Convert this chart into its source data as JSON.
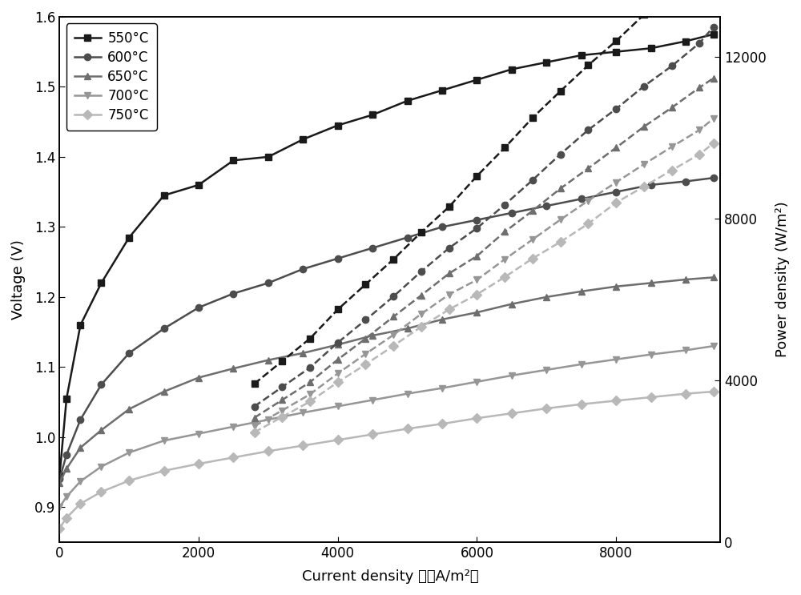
{
  "temperatures": [
    "550°C",
    "600°C",
    "650°C",
    "700°C",
    "750°C"
  ],
  "colors": [
    "#1a1a1a",
    "#4d4d4d",
    "#6e6e6e",
    "#969696",
    "#b8b8b8"
  ],
  "voltage_data": {
    "550": {
      "x": [
        0,
        100,
        300,
        600,
        1000,
        1500,
        2000,
        2500,
        3000,
        3500,
        4000,
        4500,
        5000,
        5500,
        6000,
        6500,
        7000,
        7500,
        8000,
        8500,
        9000,
        9400
      ],
      "y": [
        0.945,
        1.055,
        1.16,
        1.22,
        1.285,
        1.345,
        1.36,
        1.395,
        1.4,
        1.425,
        1.445,
        1.46,
        1.48,
        1.495,
        1.51,
        1.525,
        1.535,
        1.545,
        1.55,
        1.555,
        1.565,
        1.575
      ]
    },
    "600": {
      "x": [
        0,
        100,
        300,
        600,
        1000,
        1500,
        2000,
        2500,
        3000,
        3500,
        4000,
        4500,
        5000,
        5500,
        6000,
        6500,
        7000,
        7500,
        8000,
        8500,
        9000,
        9400
      ],
      "y": [
        0.94,
        0.975,
        1.025,
        1.075,
        1.12,
        1.155,
        1.185,
        1.205,
        1.22,
        1.24,
        1.255,
        1.27,
        1.285,
        1.3,
        1.31,
        1.32,
        1.33,
        1.34,
        1.35,
        1.36,
        1.365,
        1.37
      ]
    },
    "650": {
      "x": [
        0,
        100,
        300,
        600,
        1000,
        1500,
        2000,
        2500,
        3000,
        3500,
        4000,
        4500,
        5000,
        5500,
        6000,
        6500,
        7000,
        7500,
        8000,
        8500,
        9000,
        9400
      ],
      "y": [
        0.935,
        0.955,
        0.985,
        1.01,
        1.04,
        1.065,
        1.085,
        1.098,
        1.11,
        1.12,
        1.132,
        1.145,
        1.155,
        1.168,
        1.178,
        1.19,
        1.2,
        1.208,
        1.215,
        1.22,
        1.225,
        1.228
      ]
    },
    "700": {
      "x": [
        0,
        100,
        300,
        600,
        1000,
        1500,
        2000,
        2500,
        3000,
        3500,
        4000,
        4500,
        5000,
        5500,
        6000,
        6500,
        7000,
        7500,
        8000,
        8500,
        9000,
        9400
      ],
      "y": [
        0.9,
        0.915,
        0.937,
        0.958,
        0.978,
        0.995,
        1.005,
        1.015,
        1.025,
        1.035,
        1.044,
        1.053,
        1.062,
        1.07,
        1.079,
        1.088,
        1.096,
        1.104,
        1.111,
        1.118,
        1.124,
        1.13
      ]
    },
    "750": {
      "x": [
        0,
        100,
        300,
        600,
        1000,
        1500,
        2000,
        2500,
        3000,
        3500,
        4000,
        4500,
        5000,
        5500,
        6000,
        6500,
        7000,
        7500,
        8000,
        8500,
        9000,
        9400
      ],
      "y": [
        0.87,
        0.885,
        0.905,
        0.922,
        0.938,
        0.952,
        0.962,
        0.971,
        0.98,
        0.988,
        0.996,
        1.004,
        1.012,
        1.019,
        1.027,
        1.034,
        1.041,
        1.047,
        1.052,
        1.057,
        1.062,
        1.065
      ]
    }
  },
  "power_data": {
    "550": {
      "x": [
        2800,
        3200,
        3600,
        4000,
        4400,
        4800,
        5200,
        5600,
        6000,
        6400,
        6800,
        7200,
        7600,
        8000,
        8400,
        8800,
        9200,
        9400
      ],
      "y": [
        3920,
        4480,
        5040,
        5760,
        6380,
        7000,
        7670,
        8300,
        9060,
        9760,
        10500,
        11160,
        11800,
        12400,
        13050,
        13640,
        14350,
        14750
      ]
    },
    "600": {
      "x": [
        2800,
        3200,
        3600,
        4000,
        4400,
        4800,
        5200,
        5600,
        6000,
        6400,
        6800,
        7200,
        7600,
        8000,
        8400,
        8800,
        9200,
        9400
      ],
      "y": [
        3360,
        3840,
        4320,
        4940,
        5500,
        6080,
        6700,
        7280,
        7770,
        8350,
        8960,
        9600,
        10200,
        10720,
        11280,
        11780,
        12350,
        12750
      ]
    },
    "650": {
      "x": [
        2800,
        3200,
        3600,
        4000,
        4400,
        4800,
        5200,
        5600,
        6000,
        6400,
        6800,
        7200,
        7600,
        8000,
        8400,
        8800,
        9200,
        9400
      ],
      "y": [
        3080,
        3520,
        3960,
        4520,
        5040,
        5580,
        6110,
        6650,
        7080,
        7680,
        8200,
        8750,
        9250,
        9760,
        10280,
        10750,
        11250,
        11480
      ]
    },
    "700": {
      "x": [
        2800,
        3200,
        3600,
        4000,
        4400,
        4800,
        5200,
        5600,
        6000,
        6400,
        6800,
        7200,
        7600,
        8000,
        8400,
        8800,
        9200,
        9400
      ],
      "y": [
        2870,
        3260,
        3660,
        4176,
        4660,
        5130,
        5650,
        6130,
        6492,
        7000,
        7490,
        7980,
        8450,
        8904,
        9350,
        9780,
        10200,
        10480
      ]
    },
    "750": {
      "x": [
        2800,
        3200,
        3600,
        4000,
        4400,
        4800,
        5200,
        5600,
        6000,
        6400,
        6800,
        7200,
        7600,
        8000,
        8400,
        8800,
        9200,
        9400
      ],
      "y": [
        2720,
        3100,
        3480,
        3960,
        4400,
        4860,
        5330,
        5760,
        6132,
        6560,
        7020,
        7430,
        7880,
        8400,
        8800,
        9200,
        9600,
        9870
      ]
    }
  },
  "voltage_markers": [
    "s",
    "o",
    "^",
    "v",
    "D"
  ],
  "xlim": [
    0,
    9500
  ],
  "ylim_left": [
    0.85,
    1.6
  ],
  "ylim_right": [
    0,
    13000
  ],
  "yticks_left": [
    0.9,
    1.0,
    1.1,
    1.2,
    1.3,
    1.4,
    1.5,
    1.6
  ],
  "yticks_right": [
    0,
    4000,
    8000,
    12000
  ],
  "xticks": [
    0,
    2000,
    4000,
    6000,
    8000
  ],
  "xlabel": "Current density 　（A/m²）",
  "ylabel_left": "Voltage (V)",
  "ylabel_right": "Power density (W/m²)",
  "legend_labels": [
    "550°C",
    "600°C",
    "650°C",
    "700°C",
    "750°C"
  ],
  "background_color": "#ffffff",
  "line_width": 1.8,
  "marker_size": 6
}
